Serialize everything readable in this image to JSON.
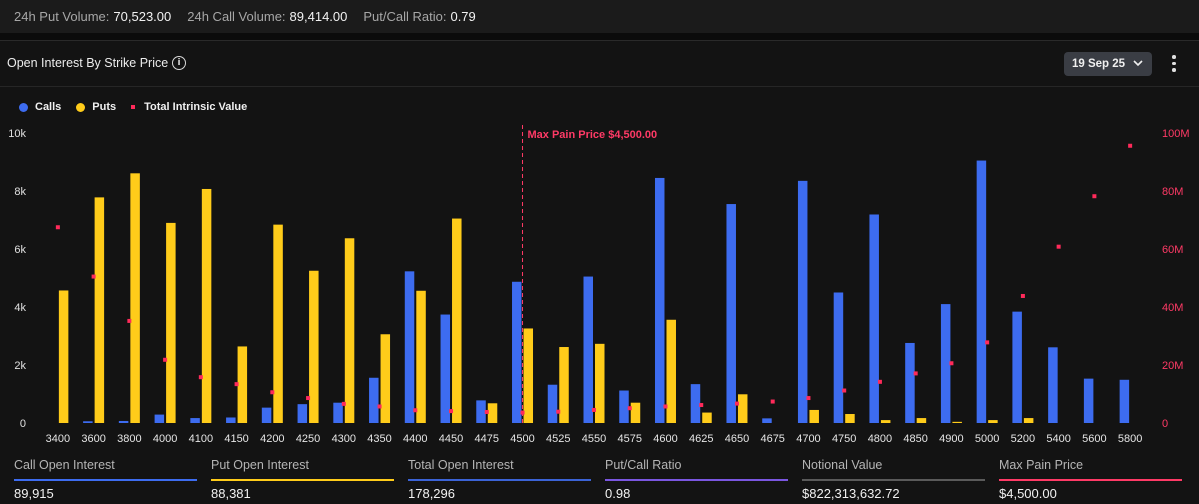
{
  "topbar": {
    "put_volume_label": "24h Put Volume:",
    "put_volume_value": "70,523.00",
    "call_volume_label": "24h Call Volume:",
    "call_volume_value": "89,414.00",
    "ratio_label": "Put/Call Ratio:",
    "ratio_value": "0.79"
  },
  "panel": {
    "title": "Open Interest By Strike Price",
    "info_icon": "info-icon",
    "date_label": "19 Sep 25",
    "menu_icon": "kebab-menu-icon"
  },
  "legend": {
    "calls": "Calls",
    "puts": "Puts",
    "intrinsic": "Total Intrinsic Value"
  },
  "colors": {
    "calls": "#3d6cf0",
    "puts": "#ffcc1a",
    "intrinsic": "#ff2a5a",
    "maxpain": "#ff3a66"
  },
  "chart_data": {
    "type": "bar",
    "categories": [
      "3400",
      "3600",
      "3800",
      "4000",
      "4100",
      "4150",
      "4200",
      "4250",
      "4300",
      "4350",
      "4400",
      "4450",
      "4475",
      "4500",
      "4525",
      "4550",
      "4575",
      "4600",
      "4625",
      "4650",
      "4675",
      "4700",
      "4750",
      "4800",
      "4850",
      "4900",
      "5000",
      "5200",
      "5400",
      "5600",
      "5800"
    ],
    "series": [
      {
        "name": "Calls",
        "axis": "left",
        "kind": "bar",
        "values": [
          0,
          60,
          70,
          290,
          170,
          190,
          530,
          650,
          700,
          1560,
          5230,
          3740,
          780,
          4870,
          1320,
          5050,
          1120,
          8450,
          1340,
          7550,
          160,
          8350,
          4500,
          7190,
          2760,
          4100,
          9050,
          3840,
          2610,
          1530,
          1490
        ]
      },
      {
        "name": "Puts",
        "axis": "left",
        "kind": "bar",
        "values": [
          4570,
          7780,
          8610,
          6900,
          8070,
          2640,
          6840,
          5250,
          6370,
          3060,
          4560,
          7050,
          680,
          3260,
          2620,
          2730,
          700,
          3560,
          360,
          990,
          0,
          450,
          310,
          100,
          170,
          40,
          100,
          170,
          0,
          0,
          0
        ]
      },
      {
        "name": "Total Intrinsic Value",
        "axis": "right",
        "kind": "scatter",
        "values": [
          67500000,
          50500000,
          35200000,
          21800000,
          15800000,
          13400000,
          10600000,
          8600000,
          6600000,
          5700000,
          4400000,
          4100000,
          3800000,
          3600000,
          3900000,
          4500000,
          5100000,
          5700000,
          6200000,
          6700000,
          7400000,
          8600000,
          11200000,
          14200000,
          17100000,
          20600000,
          27800000,
          43800000,
          60800000,
          78200000,
          95600000
        ]
      }
    ],
    "y_left": {
      "min": 0,
      "max": 10000,
      "ticks": [
        "0",
        "2k",
        "4k",
        "6k",
        "8k",
        "10k"
      ]
    },
    "y_right": {
      "min": 0,
      "max": 100000000,
      "ticks": [
        "0",
        "20M",
        "40M",
        "60M",
        "80M",
        "100M"
      ]
    },
    "max_pain": {
      "strike": "4500",
      "label": "Max Pain Price $4,500.00"
    },
    "legend_position": "top-left",
    "grid": false
  },
  "footer": [
    {
      "label": "Call Open Interest",
      "value": "89,915",
      "color": "#3d6cf0"
    },
    {
      "label": "Put Open Interest",
      "value": "88,381",
      "color": "#ffcc1a"
    },
    {
      "label": "Total Open Interest",
      "value": "178,296",
      "color": "#3b63d6"
    },
    {
      "label": "Put/Call Ratio",
      "value": "0.98",
      "color": "#7a56e0"
    },
    {
      "label": "Notional Value",
      "value": "$822,313,632.72",
      "color": "#5a5a5a"
    },
    {
      "label": "Max Pain Price",
      "value": "$4,500.00",
      "color": "#ff3a66"
    }
  ]
}
